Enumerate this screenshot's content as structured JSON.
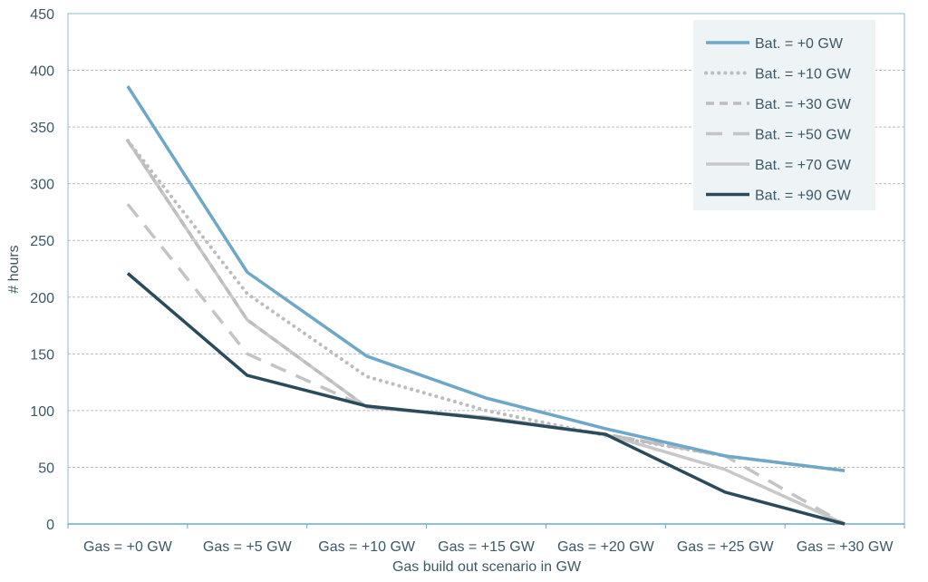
{
  "chart_data": {
    "type": "line",
    "title": "",
    "xlabel": "Gas build out scenario in GW",
    "ylabel": "# hours",
    "ylim": [
      0,
      450
    ],
    "yticks": [
      0,
      50,
      100,
      150,
      200,
      250,
      300,
      350,
      400,
      450
    ],
    "grid": true,
    "legend_position": "top-right",
    "categories": [
      "Gas = +0 GW",
      "Gas = +5 GW",
      "Gas = +10 GW",
      "Gas = +15 GW",
      "Gas = +20 GW",
      "Gas = +25 GW",
      "Gas = +30 GW"
    ],
    "series": [
      {
        "name": "Bat. = +0 GW",
        "color": "#6ea8c8",
        "style": "solid",
        "values": [
          386,
          222,
          148,
          111,
          84,
          60,
          47
        ]
      },
      {
        "name": "Bat. = +10 GW",
        "color": "#bdbdbd",
        "style": "dotted",
        "values": [
          338,
          203,
          130,
          100,
          78,
          60,
          47
        ]
      },
      {
        "name": "Bat. = +30 GW",
        "color": "#bdbdbd",
        "style": "short-dash",
        "values": [
          338,
          180,
          103,
          94,
          79,
          60,
          47
        ]
      },
      {
        "name": "Bat. = +50 GW",
        "color": "#c4c4c4",
        "style": "long-dash",
        "values": [
          282,
          150,
          103,
          94,
          79,
          60,
          0
        ]
      },
      {
        "name": "Bat. = +70 GW",
        "color": "#c8c8c8",
        "style": "solid",
        "values": [
          338,
          180,
          103,
          94,
          79,
          48,
          0
        ]
      },
      {
        "name": "Bat. = +90 GW",
        "color": "#2b4a5a",
        "style": "solid",
        "values": [
          221,
          131,
          104,
          93,
          79,
          28,
          0
        ]
      }
    ]
  }
}
